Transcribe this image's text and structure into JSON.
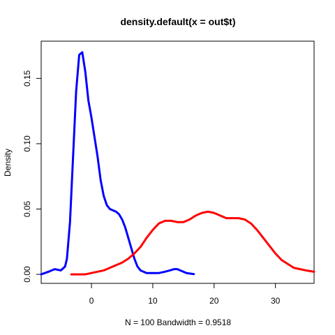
{
  "chart_data": {
    "type": "line",
    "title": "density.default(x = out$t)",
    "xlabel": "N = 100   Bandwidth = 0.9518",
    "ylabel": "Density",
    "xlim": [
      -8.2,
      36.3
    ],
    "ylim": [
      -0.0069,
      0.1785
    ],
    "x_ticks": [
      0,
      10,
      20,
      30
    ],
    "x_tick_labels": [
      "0",
      "10",
      "20",
      "30"
    ],
    "y_ticks": [
      0.0,
      0.05,
      0.1,
      0.15
    ],
    "y_tick_labels": [
      "0.00",
      "0.05",
      "0.10",
      "0.15"
    ],
    "grid": false,
    "series": [
      {
        "color": "#0000ff",
        "points": [
          [
            -8.2,
            0.0
          ],
          [
            -7.0,
            0.002
          ],
          [
            -6.0,
            0.004
          ],
          [
            -5.0,
            0.003
          ],
          [
            -4.3,
            0.006
          ],
          [
            -4.0,
            0.012
          ],
          [
            -3.5,
            0.04
          ],
          [
            -3.0,
            0.09
          ],
          [
            -2.5,
            0.14
          ],
          [
            -2.0,
            0.168
          ],
          [
            -1.5,
            0.17
          ],
          [
            -1.0,
            0.155
          ],
          [
            -0.5,
            0.133
          ],
          [
            0.0,
            0.12
          ],
          [
            0.5,
            0.105
          ],
          [
            1.0,
            0.09
          ],
          [
            1.5,
            0.072
          ],
          [
            2.0,
            0.06
          ],
          [
            2.5,
            0.053
          ],
          [
            3.0,
            0.05
          ],
          [
            3.5,
            0.049
          ],
          [
            4.0,
            0.048
          ],
          [
            4.5,
            0.046
          ],
          [
            5.0,
            0.042
          ],
          [
            5.5,
            0.036
          ],
          [
            6.0,
            0.028
          ],
          [
            6.5,
            0.02
          ],
          [
            7.0,
            0.012
          ],
          [
            7.5,
            0.006
          ],
          [
            8.0,
            0.003
          ],
          [
            9.0,
            0.001
          ],
          [
            10.0,
            0.001
          ],
          [
            11.0,
            0.001
          ],
          [
            12.0,
            0.002
          ],
          [
            12.8,
            0.003
          ],
          [
            13.5,
            0.004
          ],
          [
            14.0,
            0.004
          ],
          [
            14.5,
            0.003
          ],
          [
            15.0,
            0.002
          ],
          [
            15.5,
            0.001
          ],
          [
            16.7,
            0.0002
          ]
        ]
      },
      {
        "color": "#ff0000",
        "points": [
          [
            -3.3,
            0.0
          ],
          [
            -1.0,
            0.0
          ],
          [
            0.0,
            0.001
          ],
          [
            1.0,
            0.002
          ],
          [
            2.0,
            0.003
          ],
          [
            3.0,
            0.005
          ],
          [
            4.0,
            0.007
          ],
          [
            5.0,
            0.009
          ],
          [
            6.0,
            0.012
          ],
          [
            7.0,
            0.016
          ],
          [
            8.0,
            0.021
          ],
          [
            9.0,
            0.028
          ],
          [
            10.0,
            0.034
          ],
          [
            11.0,
            0.039
          ],
          [
            12.0,
            0.041
          ],
          [
            13.0,
            0.041
          ],
          [
            14.0,
            0.04
          ],
          [
            15.0,
            0.04
          ],
          [
            16.0,
            0.042
          ],
          [
            17.0,
            0.045
          ],
          [
            18.0,
            0.047
          ],
          [
            19.0,
            0.048
          ],
          [
            20.0,
            0.047
          ],
          [
            21.0,
            0.045
          ],
          [
            22.0,
            0.043
          ],
          [
            23.0,
            0.043
          ],
          [
            24.0,
            0.043
          ],
          [
            25.0,
            0.042
          ],
          [
            26.0,
            0.039
          ],
          [
            27.0,
            0.034
          ],
          [
            28.0,
            0.028
          ],
          [
            29.0,
            0.022
          ],
          [
            30.0,
            0.016
          ],
          [
            31.0,
            0.011
          ],
          [
            32.0,
            0.008
          ],
          [
            33.0,
            0.005
          ],
          [
            34.0,
            0.004
          ],
          [
            35.0,
            0.003
          ],
          [
            36.3,
            0.002
          ]
        ]
      }
    ]
  }
}
